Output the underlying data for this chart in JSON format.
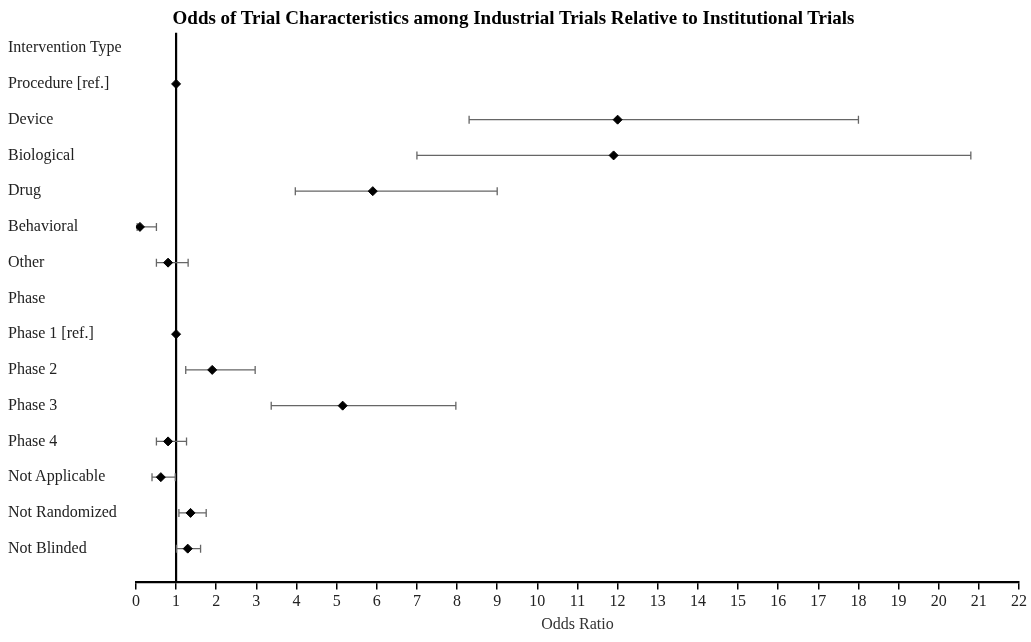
{
  "chart_data": {
    "type": "scatter",
    "orientation": "horizontal",
    "title": "Odds of Trial Characteristics among Industrial Trials Relative to Institutional Trials",
    "xlabel": "Odds Ratio",
    "categories": [
      "Intervention Type",
      "Procedure [ref.]",
      "Device",
      "Biological",
      "Drug",
      "Behavioral",
      "Other",
      "Phase",
      "Phase 1 [ref.]",
      "Phase 2",
      "Phase 3",
      "Phase 4",
      "Not Applicable",
      "Not Randomized",
      "Not Blinded"
    ],
    "values": [
      null,
      1,
      12.0,
      11.9,
      5.9,
      0.1,
      0.8,
      null,
      1,
      1.9,
      5.15,
      0.8,
      0.62,
      1.36,
      1.29
    ],
    "errors": [
      null,
      null,
      [
        8.3,
        18.0
      ],
      [
        7.0,
        20.8
      ],
      [
        3.97,
        9.0
      ],
      [
        0.03,
        0.51
      ],
      [
        0.51,
        1.3
      ],
      null,
      null,
      [
        1.24,
        2.97
      ],
      [
        3.37,
        7.97
      ],
      [
        0.51,
        1.26
      ],
      [
        0.4,
        0.98
      ],
      [
        1.07,
        1.75
      ],
      [
        1.01,
        1.61
      ]
    ],
    "color": "#000000",
    "marker": "diamond",
    "grid": false,
    "legend": false,
    "xlim": [
      0,
      22
    ],
    "xticks": [
      0,
      1,
      2,
      3,
      4,
      5,
      6,
      7,
      8,
      9,
      10,
      11,
      12,
      13,
      14,
      15,
      16,
      17,
      18,
      19,
      20,
      21,
      22
    ],
    "ref_lines": [
      {
        "axis": "x",
        "value": 1
      }
    ]
  }
}
